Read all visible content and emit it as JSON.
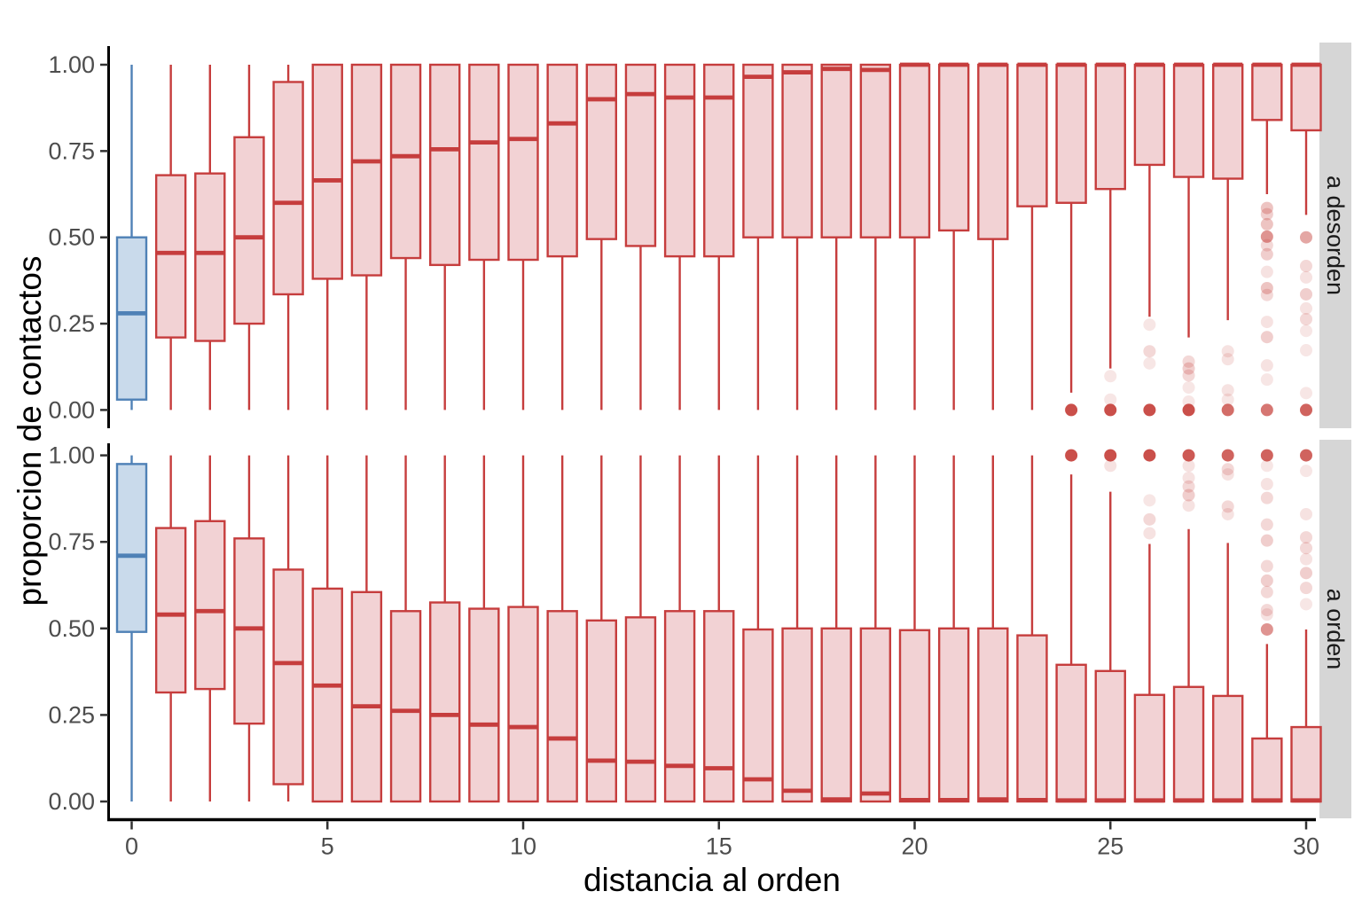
{
  "chart_data": {
    "type": "boxplot",
    "title": "",
    "xlabel": "distancia al orden",
    "ylabel": "proporcion de contactos",
    "x_tick_values": [
      0,
      5,
      10,
      15,
      20,
      25,
      30
    ],
    "x_tick_labels": [
      "0",
      "5",
      "10",
      "15",
      "20",
      "25",
      "30"
    ],
    "y_tick_values": [
      1.0,
      0.75,
      0.5,
      0.25,
      0.0
    ],
    "y_tick_labels": [
      "1.00",
      "0.75",
      "0.50",
      "0.25",
      "0.00"
    ],
    "x_range": [
      -0.6,
      30.6
    ],
    "y_range": [
      0,
      1
    ],
    "grid": "off",
    "legend": "none",
    "facet_layout": "rows, strips on right",
    "box_format": "[x, group(blue|red), whisker_low, q1, median, q3, whisker_high, outliers:[[value, alpha],...]]",
    "colors": {
      "blue_fill": "#c9daeb",
      "blue_stroke": "#4f81b6",
      "red_fill": "#f2d2d4",
      "red_stroke": "#c63d3d",
      "outlier": "#c43c36",
      "strip_bg": "#d6d6d6",
      "strip_text": "#1a1a1a",
      "axis_text": "#4d4d4d",
      "axis_line": "#000000"
    },
    "facets": [
      {
        "label": "a desorden",
        "boxes": [
          [
            0,
            "blue",
            0,
            0.03,
            0.28,
            0.5,
            1,
            []
          ],
          [
            1,
            "red",
            0,
            0.21,
            0.455,
            0.68,
            1,
            []
          ],
          [
            2,
            "red",
            0,
            0.2,
            0.455,
            0.685,
            1,
            []
          ],
          [
            3,
            "red",
            0,
            0.25,
            0.5,
            0.79,
            1,
            []
          ],
          [
            4,
            "red",
            0,
            0.335,
            0.6,
            0.95,
            1,
            []
          ],
          [
            5,
            "red",
            0,
            0.38,
            0.665,
            1,
            1,
            []
          ],
          [
            6,
            "red",
            0,
            0.39,
            0.72,
            1,
            1,
            []
          ],
          [
            7,
            "red",
            0,
            0.44,
            0.735,
            1,
            1,
            []
          ],
          [
            8,
            "red",
            0,
            0.42,
            0.755,
            1,
            1,
            []
          ],
          [
            9,
            "red",
            0,
            0.435,
            0.775,
            1,
            1,
            []
          ],
          [
            10,
            "red",
            0,
            0.435,
            0.785,
            1,
            1,
            []
          ],
          [
            11,
            "red",
            0,
            0.445,
            0.83,
            1,
            1,
            []
          ],
          [
            12,
            "red",
            0,
            0.495,
            0.9,
            1,
            1,
            []
          ],
          [
            13,
            "red",
            0,
            0.475,
            0.915,
            1,
            1,
            []
          ],
          [
            14,
            "red",
            0,
            0.445,
            0.905,
            1,
            1,
            []
          ],
          [
            15,
            "red",
            0,
            0.445,
            0.905,
            1,
            1,
            []
          ],
          [
            16,
            "red",
            0,
            0.5,
            0.965,
            1,
            1,
            []
          ],
          [
            17,
            "red",
            0,
            0.5,
            0.978,
            1,
            1,
            []
          ],
          [
            18,
            "red",
            0,
            0.5,
            0.988,
            1,
            1,
            []
          ],
          [
            19,
            "red",
            0,
            0.5,
            0.985,
            1,
            1,
            []
          ],
          [
            20,
            "red",
            0,
            0.5,
            1,
            1,
            1,
            []
          ],
          [
            21,
            "red",
            0,
            0.52,
            1,
            1,
            1,
            []
          ],
          [
            22,
            "red",
            0,
            0.495,
            1,
            1,
            1,
            []
          ],
          [
            23,
            "red",
            0,
            0.59,
            1,
            1,
            1,
            []
          ],
          [
            24,
            "red",
            0.05,
            0.6,
            1,
            1,
            1,
            [
              [
                0,
                0.9
              ]
            ]
          ],
          [
            25,
            "red",
            0.12,
            0.64,
            1,
            1,
            1,
            [
              [
                0.098,
                0.13
              ],
              [
                0.03,
                0.13
              ],
              [
                0,
                0.9
              ]
            ]
          ],
          [
            26,
            "red",
            0.27,
            0.71,
            1,
            1,
            1,
            [
              [
                0.247,
                0.13
              ],
              [
                0.17,
                0.2
              ],
              [
                0.135,
                0.13
              ],
              [
                0,
                0.9
              ]
            ]
          ],
          [
            27,
            "red",
            0.21,
            0.675,
            1,
            1,
            1,
            [
              [
                0.14,
                0.2
              ],
              [
                0.12,
                0.25
              ],
              [
                0.1,
                0.2
              ],
              [
                0.065,
                0.13
              ],
              [
                0.024,
                0.13
              ],
              [
                0,
                0.9
              ]
            ]
          ],
          [
            28,
            "red",
            0.26,
            0.67,
            1,
            1,
            1,
            [
              [
                0.17,
                0.15
              ],
              [
                0.147,
                0.15
              ],
              [
                0.057,
                0.15
              ],
              [
                0.03,
                0.13
              ],
              [
                0,
                0.75
              ]
            ]
          ],
          [
            29,
            "red",
            0.625,
            0.84,
            1,
            1,
            1,
            [
              [
                0.585,
                0.3
              ],
              [
                0.567,
                0.25
              ],
              [
                0.538,
                0.3
              ],
              [
                0.502,
                0.55
              ],
              [
                0.477,
                0.2
              ],
              [
                0.451,
                0.25
              ],
              [
                0.4,
                0.15
              ],
              [
                0.353,
                0.3
              ],
              [
                0.333,
                0.2
              ],
              [
                0.255,
                0.15
              ],
              [
                0.211,
                0.25
              ],
              [
                0.129,
                0.15
              ],
              [
                0.088,
                0.13
              ],
              [
                0,
                0.7
              ]
            ]
          ],
          [
            30,
            "red",
            0.565,
            0.81,
            1,
            1,
            1,
            [
              [
                0.5,
                0.45
              ],
              [
                0.417,
                0.2
              ],
              [
                0.384,
                0.15
              ],
              [
                0.335,
                0.25
              ],
              [
                0.294,
                0.15
              ],
              [
                0.263,
                0.2
              ],
              [
                0.229,
                0.13
              ],
              [
                0.173,
                0.13
              ],
              [
                0.049,
                0.13
              ],
              [
                0,
                0.8
              ]
            ]
          ]
        ]
      },
      {
        "label": "a orden",
        "boxes": [
          [
            0,
            "blue",
            0,
            0.49,
            0.71,
            0.975,
            1,
            []
          ],
          [
            1,
            "red",
            0,
            0.315,
            0.54,
            0.79,
            1,
            []
          ],
          [
            2,
            "red",
            0,
            0.325,
            0.55,
            0.81,
            1,
            []
          ],
          [
            3,
            "red",
            0,
            0.225,
            0.5,
            0.76,
            1,
            []
          ],
          [
            4,
            "red",
            0,
            0.05,
            0.4,
            0.67,
            1,
            []
          ],
          [
            5,
            "red",
            0,
            0,
            0.335,
            0.615,
            1,
            []
          ],
          [
            6,
            "red",
            0,
            0,
            0.275,
            0.605,
            1,
            []
          ],
          [
            7,
            "red",
            0,
            0,
            0.262,
            0.55,
            1,
            []
          ],
          [
            8,
            "red",
            0,
            0,
            0.25,
            0.575,
            1,
            []
          ],
          [
            9,
            "red",
            0,
            0,
            0.222,
            0.557,
            1,
            []
          ],
          [
            10,
            "red",
            0,
            0,
            0.215,
            0.562,
            1,
            []
          ],
          [
            11,
            "red",
            0,
            0,
            0.182,
            0.55,
            1,
            []
          ],
          [
            12,
            "red",
            0,
            0,
            0.118,
            0.523,
            1,
            []
          ],
          [
            13,
            "red",
            0,
            0,
            0.115,
            0.532,
            1,
            []
          ],
          [
            14,
            "red",
            0,
            0,
            0.103,
            0.55,
            1,
            []
          ],
          [
            15,
            "red",
            0,
            0,
            0.096,
            0.55,
            1,
            []
          ],
          [
            16,
            "red",
            0,
            0,
            0.064,
            0.497,
            1,
            []
          ],
          [
            17,
            "red",
            0,
            0,
            0.031,
            0.5,
            1,
            []
          ],
          [
            18,
            "red",
            0,
            0,
            0.006,
            0.5,
            1,
            []
          ],
          [
            19,
            "red",
            0,
            0,
            0.023,
            0.5,
            1,
            []
          ],
          [
            20,
            "red",
            0,
            0,
            0.004,
            0.495,
            1,
            []
          ],
          [
            21,
            "red",
            0,
            0,
            0.004,
            0.5,
            1,
            []
          ],
          [
            22,
            "red",
            0,
            0,
            0.006,
            0.5,
            1,
            []
          ],
          [
            23,
            "red",
            0,
            0,
            0.004,
            0.48,
            1,
            []
          ],
          [
            24,
            "red",
            0,
            0,
            0.003,
            0.395,
            0.945,
            [
              [
                1,
                0.9
              ]
            ]
          ],
          [
            25,
            "red",
            0,
            0,
            0.003,
            0.377,
            0.895,
            [
              [
                1,
                0.9
              ],
              [
                0.97,
                0.15
              ]
            ]
          ],
          [
            26,
            "red",
            0,
            0,
            0.003,
            0.308,
            0.744,
            [
              [
                1,
                0.9
              ],
              [
                0.87,
                0.13
              ],
              [
                0.815,
                0.2
              ],
              [
                0.775,
                0.15
              ]
            ]
          ],
          [
            27,
            "red",
            0,
            0,
            0.003,
            0.331,
            0.787,
            [
              [
                1,
                0.85
              ],
              [
                0.97,
                0.15
              ],
              [
                0.935,
                0.15
              ],
              [
                0.91,
                0.2
              ],
              [
                0.885,
                0.25
              ],
              [
                0.855,
                0.15
              ]
            ]
          ],
          [
            28,
            "red",
            0,
            0,
            0.003,
            0.305,
            0.747,
            [
              [
                1,
                0.8
              ],
              [
                0.96,
                0.2
              ],
              [
                0.945,
                0.15
              ],
              [
                0.852,
                0.2
              ],
              [
                0.83,
                0.15
              ]
            ]
          ],
          [
            29,
            "red",
            0,
            0,
            0.003,
            0.182,
            0.455,
            [
              [
                1,
                0.8
              ],
              [
                0.97,
                0.13
              ],
              [
                0.917,
                0.15
              ],
              [
                0.877,
                0.2
              ],
              [
                0.8,
                0.2
              ],
              [
                0.754,
                0.25
              ],
              [
                0.68,
                0.2
              ],
              [
                0.638,
                0.25
              ],
              [
                0.605,
                0.2
              ],
              [
                0.553,
                0.2
              ],
              [
                0.54,
                0.15
              ],
              [
                0.497,
                0.55
              ]
            ]
          ],
          [
            30,
            "red",
            0,
            0,
            0.003,
            0.215,
            0.497,
            [
              [
                1,
                0.8
              ],
              [
                0.955,
                0.13
              ],
              [
                0.83,
                0.15
              ],
              [
                0.763,
                0.2
              ],
              [
                0.732,
                0.2
              ],
              [
                0.7,
                0.15
              ],
              [
                0.66,
                0.25
              ],
              [
                0.617,
                0.2
              ],
              [
                0.57,
                0.13
              ]
            ]
          ]
        ]
      }
    ]
  }
}
